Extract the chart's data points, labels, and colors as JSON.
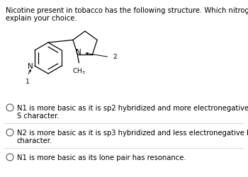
{
  "title_line1": "Nicotine present in tobacco has the following structure. Which nitrogen is more basic and",
  "title_line2": "explain your choice.",
  "options": [
    [
      "N1 is more basic as it is sp2 hybridized and more electronegative because of less",
      "S character."
    ],
    [
      "N2 is more basic as it is sp3 hybridized and less electronegative because of less S",
      "character."
    ],
    [
      "N1 is more basic as its lone pair has resonance."
    ]
  ],
  "bg_color": "#ffffff",
  "text_color": "#000000",
  "font_size": 7.2,
  "title_font_size": 7.2,
  "mol_col": "#000000"
}
